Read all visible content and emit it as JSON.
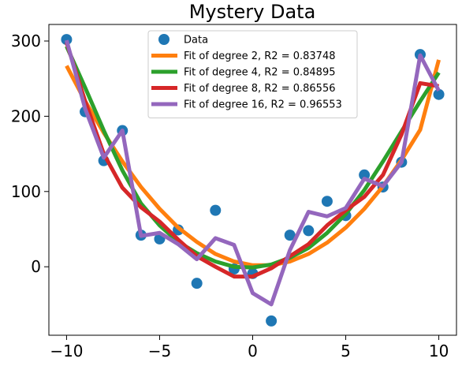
{
  "chart_data": {
    "type": "scatter",
    "title": "Mystery Data",
    "xlabel": "",
    "ylabel": "",
    "xlim": [
      -10.95,
      10.95
    ],
    "ylim": [
      -91,
      322
    ],
    "grid": false,
    "legend_position": "upper-center",
    "x_ticks": [
      -10,
      -5,
      0,
      5,
      10
    ],
    "y_ticks": [
      0,
      100,
      200,
      300
    ],
    "x_tick_labels": [
      "−10",
      "−5",
      "0",
      "5",
      "10"
    ],
    "y_tick_labels": [
      "0",
      "100",
      "200",
      "300"
    ],
    "x": [
      -10,
      -9,
      -8,
      -7,
      -6,
      -5,
      -4,
      -3,
      -2,
      -1,
      0,
      1,
      2,
      3,
      4,
      5,
      6,
      7,
      8,
      9,
      10
    ],
    "series": [
      {
        "name": "Data",
        "kind": "scatter",
        "color": "#1f77b4",
        "values": [
          302,
          206,
          141,
          181,
          42,
          37,
          49,
          -22,
          75,
          -3,
          -9,
          -72,
          42,
          48,
          87,
          68,
          122,
          106,
          139,
          282,
          229
        ]
      },
      {
        "name": "Fit of degree 2, R2 = 0.83748",
        "kind": "line",
        "color": "#ff7f0e",
        "values": [
          267,
          220,
          178,
          140,
          106,
          77,
          52,
          33,
          17,
          7,
          2,
          2,
          7,
          17,
          32,
          52,
          77,
          107,
          142,
          182,
          275
        ]
      },
      {
        "name": "Fit of degree 4, R2 = 0.84895",
        "kind": "line",
        "color": "#2ca02c",
        "values": [
          293,
          238,
          181,
          128,
          84,
          55,
          33,
          18,
          7,
          0,
          -1,
          3,
          12,
          25,
          45,
          70,
          102,
          140,
          180,
          220,
          258
        ]
      },
      {
        "name": "Fit of degree 8, R2 = 0.86556",
        "kind": "line",
        "color": "#d62728",
        "values": [
          298,
          220,
          150,
          105,
          79,
          60,
          36,
          14,
          0,
          -13,
          -13,
          -2,
          14,
          30,
          55,
          75,
          93,
          122,
          176,
          244,
          240
        ]
      },
      {
        "name": "Fit of degree 16, R2 = 0.96553",
        "kind": "line",
        "color": "#9467bd",
        "values": [
          301,
          210,
          145,
          181,
          41,
          45,
          30,
          10,
          38,
          29,
          -35,
          -50,
          22,
          73,
          67,
          78,
          117,
          107,
          139,
          281,
          234
        ]
      }
    ]
  }
}
